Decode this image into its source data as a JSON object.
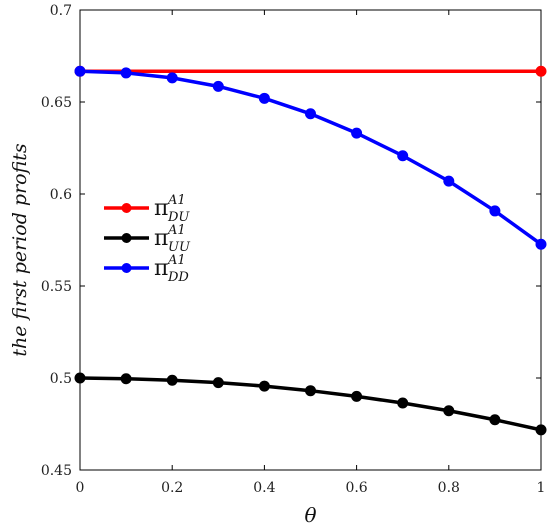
{
  "chart_data": {
    "type": "line",
    "title": "",
    "xlabel": "θ",
    "ylabel": "the first period profits",
    "xlim": [
      0,
      1
    ],
    "ylim": [
      0.45,
      0.7
    ],
    "xticks": [
      0,
      0.2,
      0.4,
      0.6,
      0.8,
      1
    ],
    "xtick_labels": [
      "0",
      "0.2",
      "0.4",
      "0.6",
      "0.8",
      "1"
    ],
    "yticks": [
      0.45,
      0.5,
      0.55,
      0.6,
      0.65,
      0.7
    ],
    "ytick_labels": [
      "0.45",
      "0.5",
      "0.55",
      "0.6",
      "0.65",
      "0.7"
    ],
    "grid": false,
    "legend_position": "left-middle",
    "x": [
      0,
      0.1,
      0.2,
      0.3,
      0.4,
      0.5,
      0.6,
      0.7,
      0.8,
      0.9,
      1
    ],
    "series": [
      {
        "name": "π",
        "sup": "A1",
        "sub": "DU",
        "color": "#ff0000",
        "values": [
          0.6667,
          0.6667,
          0.6667,
          0.6667,
          0.6667,
          0.6667,
          0.6667,
          0.6667,
          0.6667,
          0.6667,
          0.6667
        ],
        "marker_indices": [
          0,
          10
        ]
      },
      {
        "name": "π",
        "sup": "A1",
        "sub": "UU",
        "color": "#000000",
        "values": [
          0.5,
          0.4996,
          0.4988,
          0.4975,
          0.4956,
          0.4931,
          0.49,
          0.4864,
          0.4822,
          0.4773,
          0.4718
        ]
      },
      {
        "name": "π",
        "sup": "A1",
        "sub": "DD",
        "color": "#0000ff",
        "values": [
          0.6667,
          0.6658,
          0.6631,
          0.6585,
          0.652,
          0.6436,
          0.6331,
          0.6208,
          0.607,
          0.5908,
          0.5727
        ]
      }
    ]
  }
}
